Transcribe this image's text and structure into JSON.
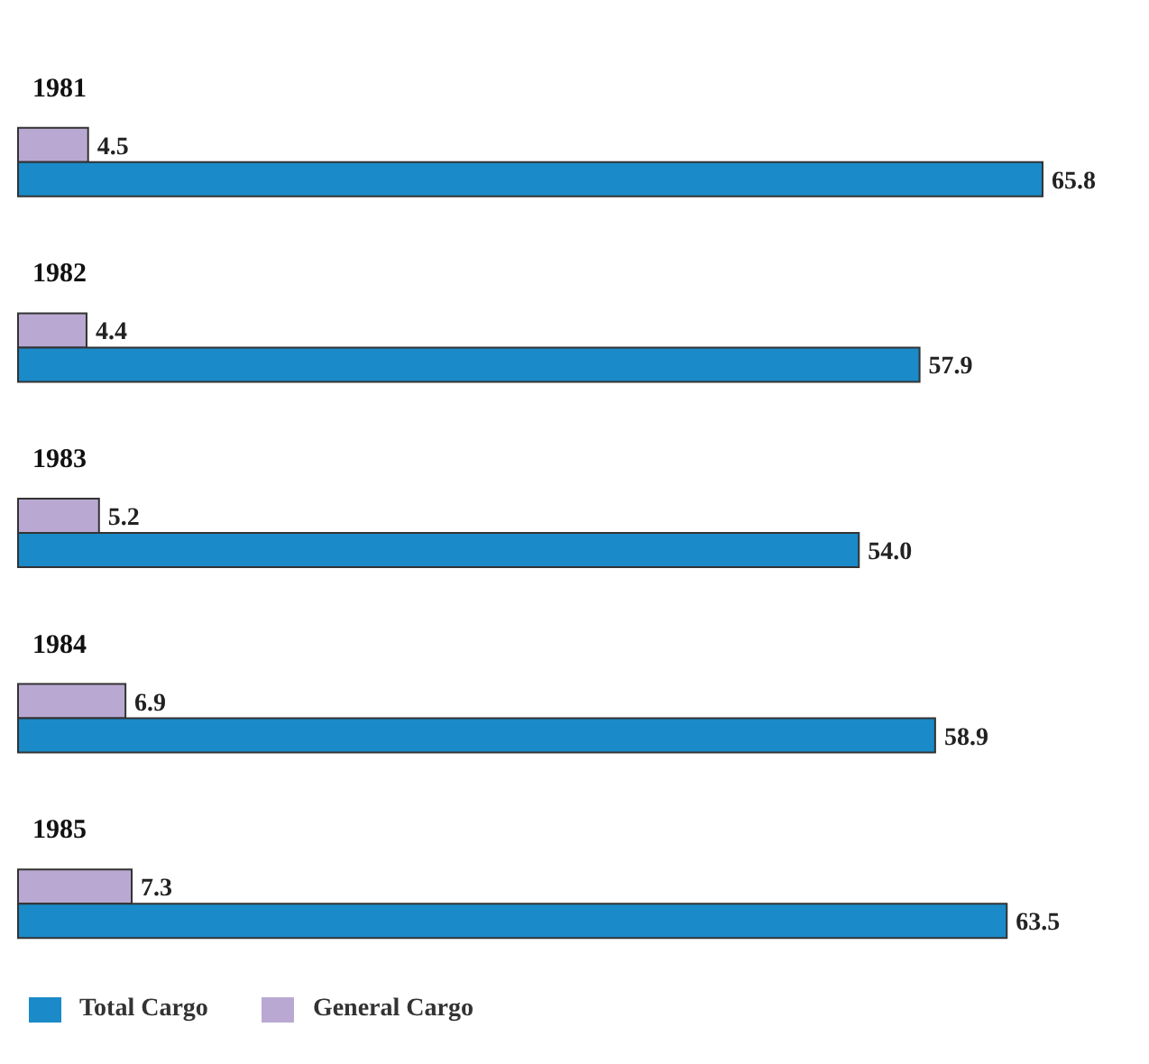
{
  "chart_data": {
    "type": "bar",
    "orientation": "horizontal",
    "categories": [
      "1981",
      "1982",
      "1983",
      "1984",
      "1985"
    ],
    "series": [
      {
        "name": "Total Cargo",
        "color": "#1a8ac8",
        "values": [
          65.8,
          57.9,
          54.0,
          58.9,
          63.5
        ],
        "value_labels": [
          "65.8",
          "57.9",
          "54.0",
          "58.9",
          "63.5"
        ]
      },
      {
        "name": "General Cargo",
        "color": "#b9a9d2",
        "values": [
          4.5,
          4.4,
          5.2,
          6.9,
          7.3
        ],
        "value_labels": [
          "4.5",
          "4.4",
          "5.2",
          "6.9",
          "7.3"
        ]
      }
    ],
    "grid": false,
    "legend": "bottom left"
  }
}
